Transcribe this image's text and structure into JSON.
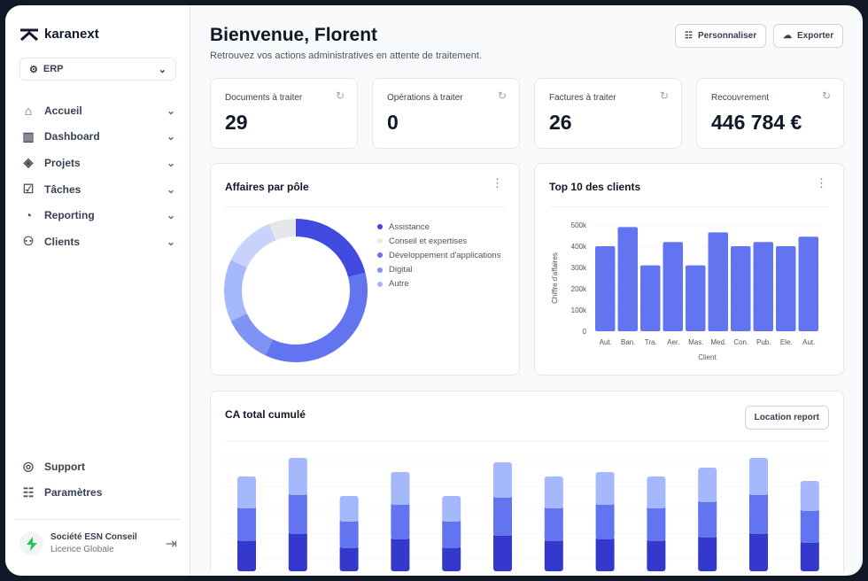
{
  "brand": "karanext",
  "workspace": {
    "label": "ERP"
  },
  "sidebar": {
    "items": [
      {
        "label": "Accueil",
        "icon": "home-icon"
      },
      {
        "label": "Dashboard",
        "icon": "chart-icon"
      },
      {
        "label": "Projets",
        "icon": "layers-icon"
      },
      {
        "label": "Tâches",
        "icon": "tasks-icon"
      },
      {
        "label": "Reporting",
        "icon": "pie-icon"
      },
      {
        "label": "Clients",
        "icon": "users-icon"
      }
    ],
    "bottom": [
      {
        "label": "Support",
        "icon": "lifebuoy-icon"
      },
      {
        "label": "Paramètres",
        "icon": "toggles-icon"
      }
    ],
    "org": {
      "name": "Société ESN Conseil",
      "license": "Licence Globale"
    }
  },
  "header": {
    "title": "Bienvenue, Florent",
    "subtitle": "Retrouvez vos actions administratives en attente de traitement.",
    "customize": "Personnaliser",
    "export": "Exporter"
  },
  "kpis": [
    {
      "label": "Documents à traiter",
      "value": "29"
    },
    {
      "label": "Opérations à traiter",
      "value": "0"
    },
    {
      "label": "Factures à traiter",
      "value": "26"
    },
    {
      "label": "Recouvrement",
      "value": "446 784 €"
    }
  ],
  "colors": {
    "accent": "#6274f0",
    "dark": "#3438cc",
    "light": "#a5b8fc"
  },
  "chart_data": [
    {
      "type": "pie",
      "title": "Affaires par pôle",
      "donut": true,
      "slices": [
        {
          "name": "Assistance",
          "value": 21,
          "color": "#4049e0"
        },
        {
          "name": "Développement d'applications",
          "value": 36,
          "color": "#6274f0"
        },
        {
          "name": "Digital",
          "value": 11,
          "color": "#7f92f5"
        },
        {
          "name": "Autre",
          "value": 14,
          "color": "#a5b8fc"
        },
        {
          "name": "",
          "value": 12,
          "color": "#c8d3fd"
        },
        {
          "name": "Conseil et expertises",
          "value": 6,
          "color": "#e5e7eb"
        }
      ],
      "legend": [
        "Assistance",
        "Conseil et expertises",
        "Développement d'applications",
        "Digital",
        "Autre"
      ],
      "legend_colors": [
        "#4049e0",
        "#e5e7eb",
        "#6274f0",
        "#7f92f5",
        "#a5b8fc"
      ]
    },
    {
      "type": "bar",
      "title": "Top 10 des clients",
      "xlabel": "Client",
      "ylabel": "Chiffre d'affaires",
      "ylim": [
        0,
        500000
      ],
      "yticks": [
        "0",
        "100k",
        "200k",
        "300k",
        "400k",
        "500k"
      ],
      "categories": [
        "Aut.",
        "Ban.",
        "Tra.",
        "Aer.",
        "Mas.",
        "Med.",
        "Con.",
        "Pub.",
        "Ele.",
        "Aut."
      ],
      "values": [
        400000,
        490000,
        310000,
        420000,
        310000,
        465000,
        400000,
        420000,
        400000,
        445000
      ]
    },
    {
      "type": "bar",
      "stacked": true,
      "title": "CA total cumulé",
      "button": "Location report",
      "series": [
        {
          "values": [
            37,
            45,
            29,
            39,
            29,
            43,
            37,
            39,
            37,
            41,
            45,
            35
          ],
          "color": "#3438cc"
        },
        {
          "values": [
            37,
            44,
            30,
            39,
            30,
            43,
            37,
            39,
            37,
            40,
            44,
            36
          ],
          "color": "#6274f0"
        },
        {
          "values": [
            33,
            39,
            26,
            34,
            26,
            37,
            33,
            34,
            33,
            36,
            39,
            31
          ],
          "color": "#a5b8fc"
        }
      ]
    }
  ]
}
